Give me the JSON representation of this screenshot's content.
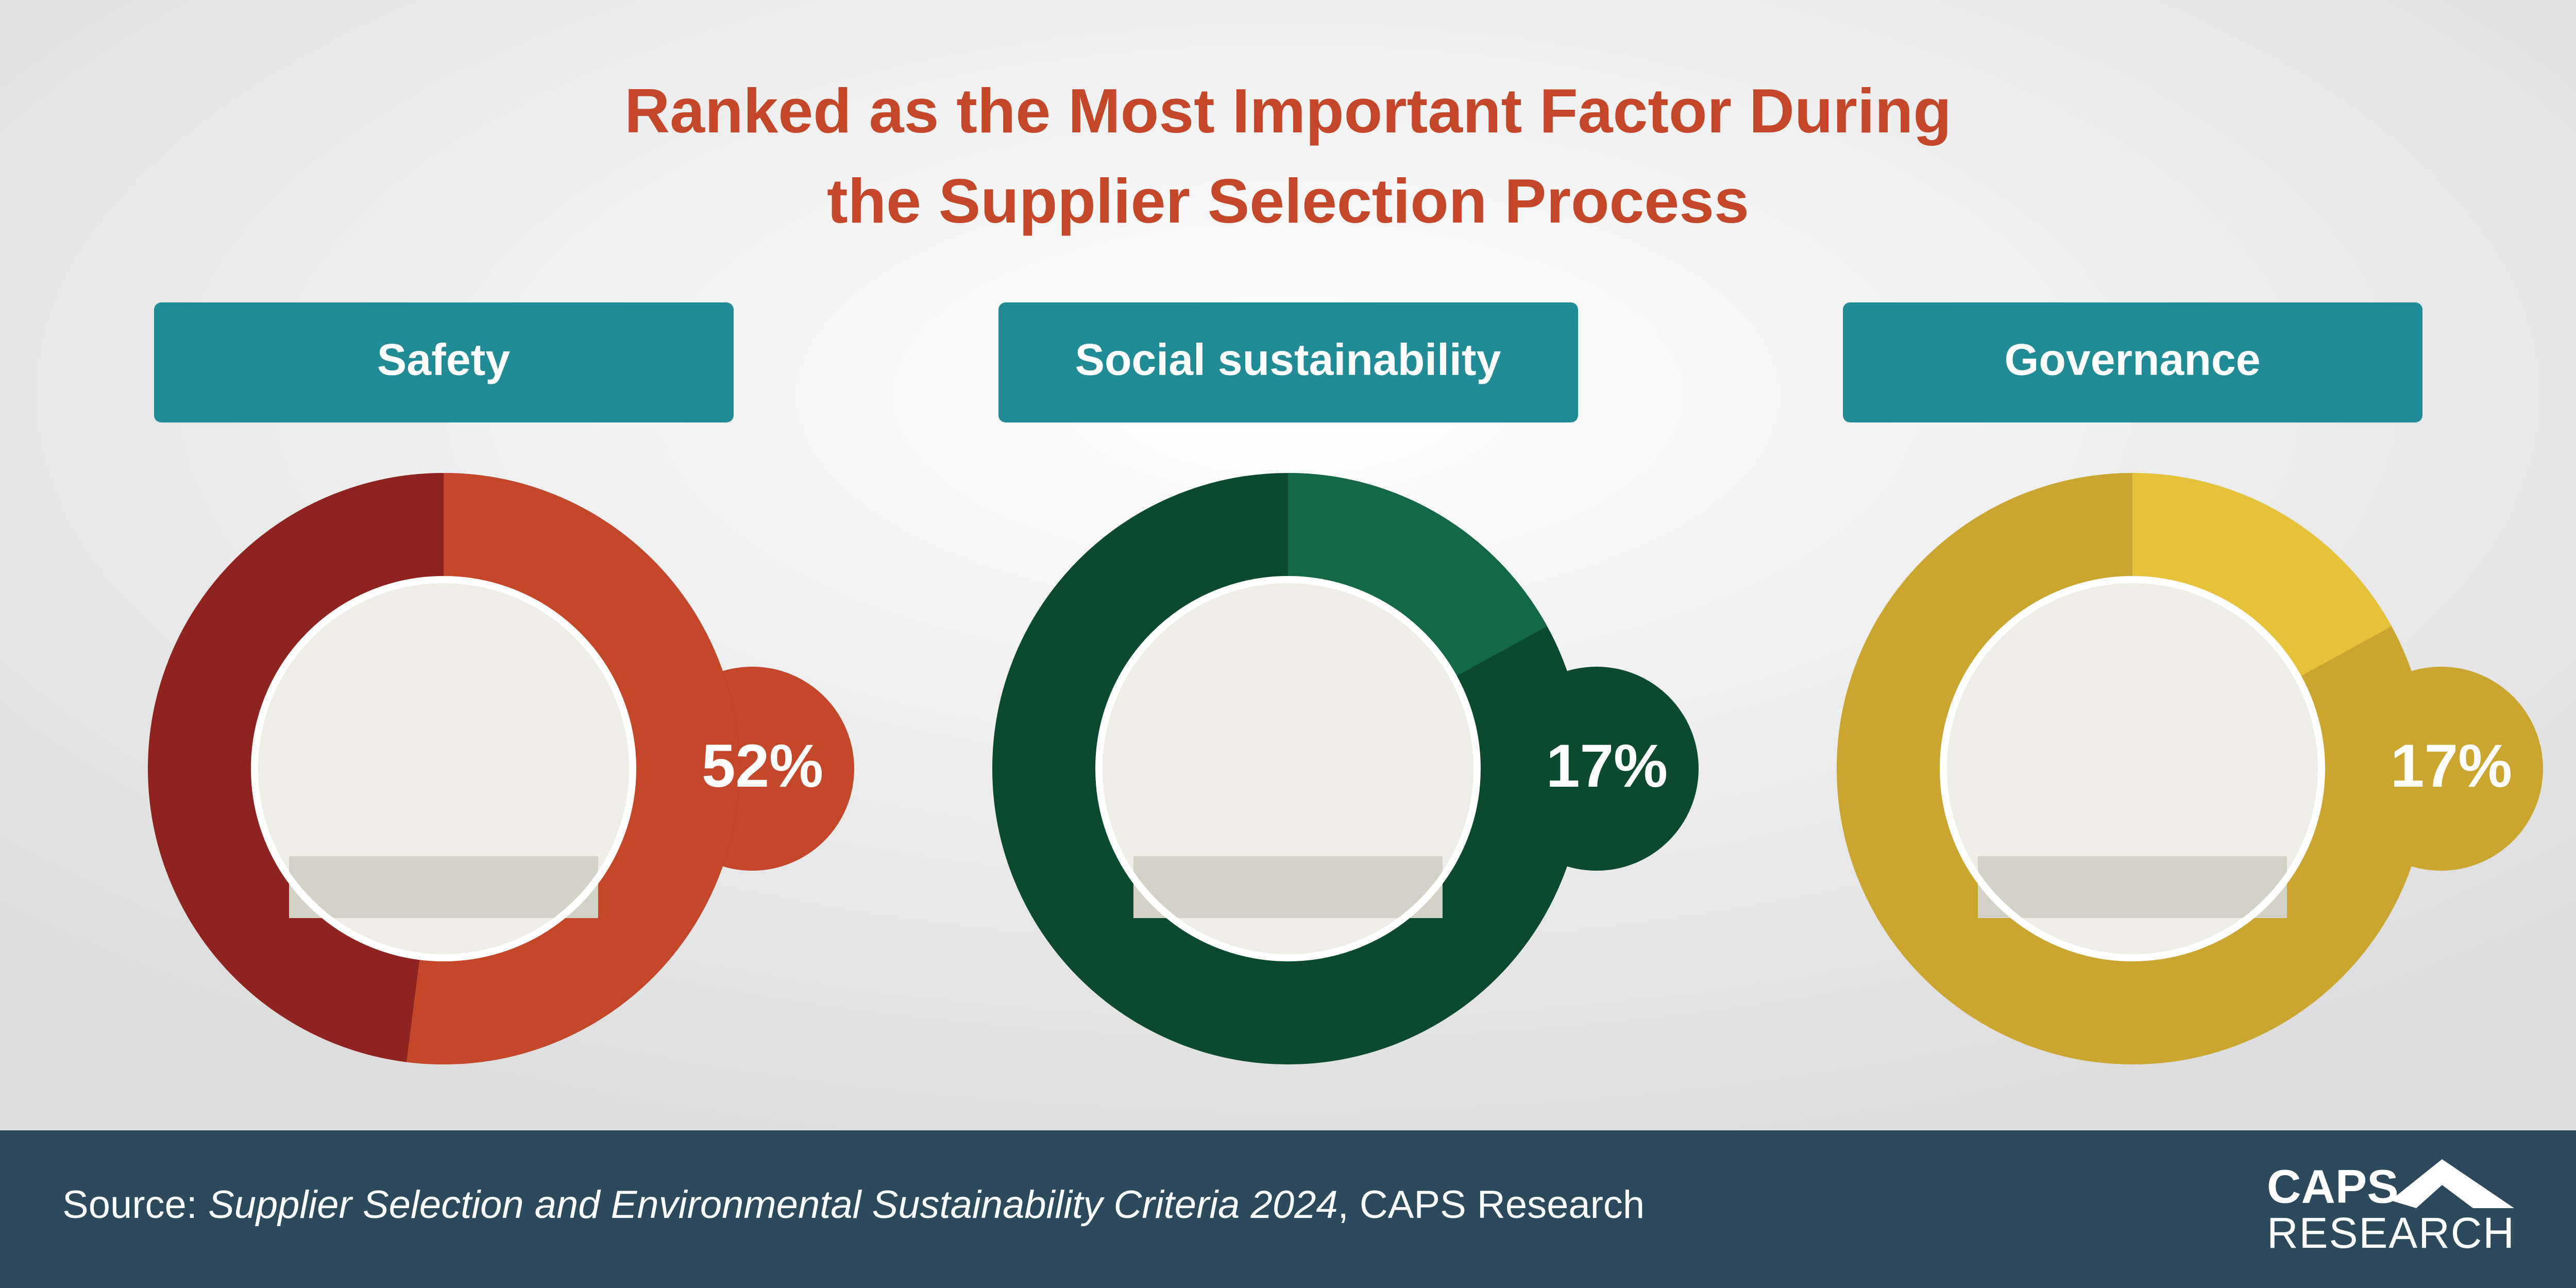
{
  "header": {
    "title": [
      "Ranked as the Most Important Factor During",
      "the Supplier Selection Process"
    ]
  },
  "chart_data": [
    {
      "type": "donut",
      "title": "Safety",
      "values": [
        52
      ],
      "value_labels": [
        "52%"
      ],
      "color": "#c4472a",
      "track_color": "#8f231f",
      "bubble_color": "#c4472a",
      "header_color": "#218b96"
    },
    {
      "type": "donut",
      "title": "Social sustainability",
      "values": [
        17
      ],
      "value_labels": [
        "17%"
      ],
      "color": "#136845",
      "track_color": "#0b4a2e",
      "bubble_color": "#0b4a2e",
      "header_color": "#218b96"
    },
    {
      "type": "donut",
      "title": "Governance",
      "values": [
        17
      ],
      "value_labels": [
        "17%"
      ],
      "color": "#e6c23b",
      "track_color": "#caa52f",
      "bubble_color": "#caa52f",
      "header_color": "#218b96"
    }
  ],
  "source": {
    "prefix": "Source: ",
    "work": "Supplier Selection and Environmental Sustainability Criteria 2024",
    "suffix": ", CAPS Research"
  },
  "logo": {
    "line1": "CAPS",
    "line2": "RESEARCH"
  }
}
